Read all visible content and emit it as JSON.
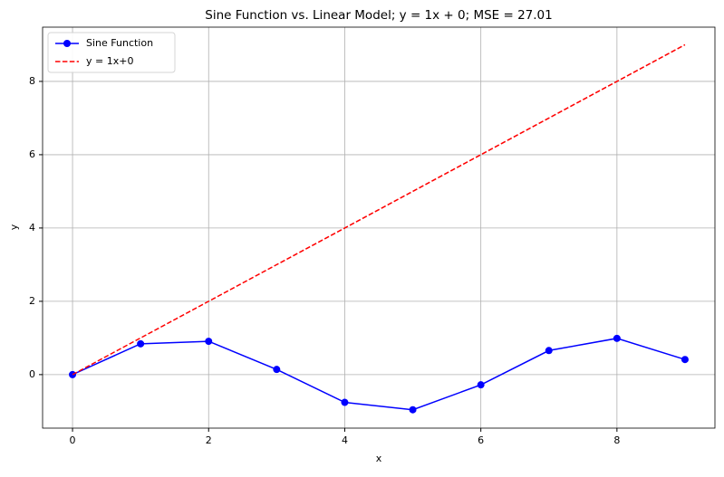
{
  "chart_data": {
    "type": "line",
    "title": "Sine Function vs. Linear Model; y = 1x + 0; MSE = 27.01",
    "x_label": "x",
    "y_label": "y",
    "x": [
      0,
      1,
      2,
      3,
      4,
      5,
      6,
      7,
      8,
      9
    ],
    "series": [
      {
        "name": "Sine Function",
        "color": "#0000ff",
        "linestyle": "solid",
        "marker": "o",
        "values": [
          0,
          0.841,
          0.909,
          0.141,
          -0.757,
          -0.959,
          -0.279,
          0.657,
          0.989,
          0.412
        ]
      },
      {
        "name": "y = 1x+0",
        "color": "#ff0000",
        "linestyle": "dashed",
        "marker": "none",
        "values": [
          0,
          1,
          2,
          3,
          4,
          5,
          6,
          7,
          8,
          9
        ]
      }
    ],
    "xlim": [
      -0.44,
      9.44
    ],
    "ylim": [
      -1.46,
      9.48
    ],
    "xticks": [
      0,
      2,
      4,
      6,
      8
    ],
    "yticks": [
      0,
      2,
      4,
      6,
      8
    ],
    "grid": true,
    "legend": "upper-left"
  }
}
